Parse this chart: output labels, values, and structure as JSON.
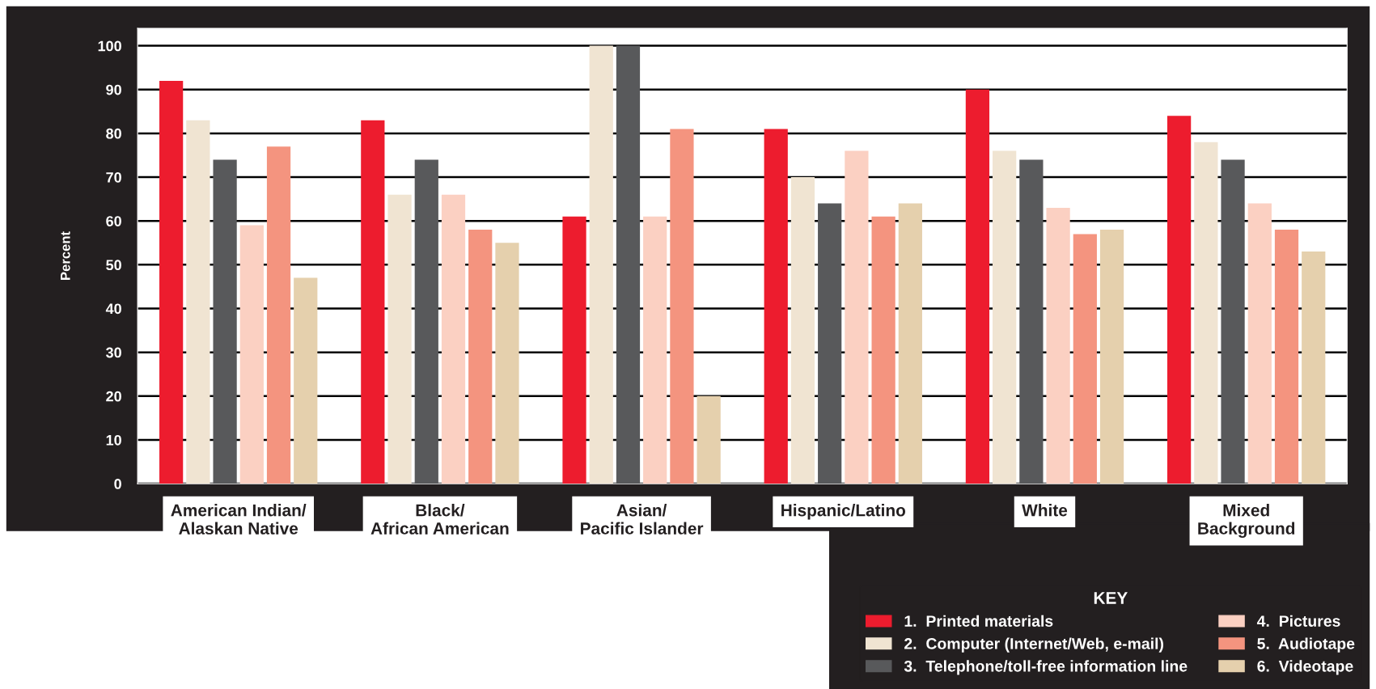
{
  "chart_data": {
    "type": "bar",
    "ylabel": "Percent",
    "categories": [
      "American Indian/\nAlaskan Native",
      "Black/\nAfrican American",
      "Asian/\nPacific Islander",
      "Hispanic/Latino",
      "White",
      "Mixed\nBackground"
    ],
    "series": [
      {
        "name": "1.  Printed materials",
        "color": "#ed1c2e",
        "values": [
          92,
          83,
          61,
          81,
          90,
          84
        ]
      },
      {
        "name": "2.  Computer (Internet/Web, e-mail)",
        "color": "#f0e4d2",
        "values": [
          83,
          66,
          100,
          70,
          76,
          78
        ]
      },
      {
        "name": "3.  Telephone/toll-free information line",
        "color": "#58595b",
        "values": [
          74,
          74,
          100,
          64,
          74,
          74
        ]
      },
      {
        "name": "4.  Pictures",
        "color": "#fbd0c2",
        "values": [
          59,
          66,
          61,
          76,
          63,
          64
        ]
      },
      {
        "name": "5.  Audiotape",
        "color": "#f4947f",
        "values": [
          77,
          58,
          81,
          61,
          57,
          58
        ]
      },
      {
        "name": "6.  Videotape",
        "color": "#e5d0ad",
        "values": [
          47,
          55,
          20,
          64,
          58,
          53
        ]
      }
    ],
    "legend_title": "KEY",
    "legend": "bottom right",
    "ylim": [
      0,
      104
    ],
    "yticks": [
      0,
      10,
      20,
      30,
      40,
      50,
      60,
      70,
      80,
      90,
      100
    ],
    "grid": "y"
  }
}
